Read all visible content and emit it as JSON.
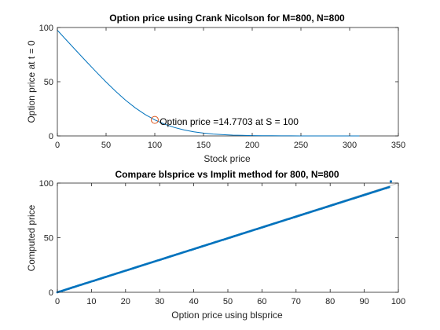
{
  "figure": {
    "background": "#ffffff",
    "axes_color": "#262626",
    "line_color": "#0072BD",
    "marker_color": "#D95319",
    "ref_line_color": "#c0c0c0"
  },
  "chart_data": [
    {
      "type": "line",
      "title": "Option price using Crank Nicolson for M=800, N=800",
      "xlabel": "Stock price",
      "ylabel": "Option price at t = 0",
      "xlim": [
        0,
        350
      ],
      "ylim": [
        0,
        100
      ],
      "xticks": [
        0,
        50,
        100,
        150,
        200,
        250,
        300,
        350
      ],
      "yticks": [
        0,
        50,
        100
      ],
      "grid": false,
      "series": [
        {
          "x": [
            0,
            10,
            20,
            30,
            40,
            50,
            60,
            70,
            80,
            90,
            100,
            110,
            120,
            130,
            140,
            150,
            160,
            170,
            180,
            190,
            200,
            210,
            220,
            230,
            240,
            250,
            260,
            270,
            280,
            290,
            300,
            310
          ],
          "y": [
            97.5,
            87.7,
            78.0,
            68.4,
            58.9,
            49.7,
            41.0,
            33.0,
            25.9,
            19.8,
            14.77,
            10.9,
            7.8,
            5.5,
            3.8,
            2.6,
            1.75,
            1.15,
            0.75,
            0.48,
            0.31,
            0.2,
            0.12,
            0.08,
            0.05,
            0.03,
            0.02,
            0.01,
            0.01,
            0.0,
            0.0,
            0.0
          ]
        }
      ],
      "highlight_point": {
        "x": 100,
        "y": 14.7703
      },
      "annotation": {
        "text": "Option price =14.7703 at S = 100",
        "x": 105,
        "y": 13
      }
    },
    {
      "type": "scatter",
      "title": "Compare blsprice vs Implit method for 800, N=800",
      "xlabel": "Option price using blsprice",
      "ylabel": "Computed price",
      "xlim": [
        0,
        100
      ],
      "ylim": [
        0,
        100
      ],
      "xticks": [
        0,
        10,
        20,
        30,
        40,
        50,
        60,
        70,
        80,
        90,
        100
      ],
      "yticks": [
        0,
        50,
        100
      ],
      "grid": false,
      "reference_line": {
        "from": [
          0,
          0
        ],
        "to": [
          100,
          100
        ]
      },
      "series": [
        {
          "x_range": [
            0,
            97.5
          ],
          "slope": 0.99,
          "outlier": {
            "x": 97.8,
            "y": 101.5
          }
        }
      ]
    }
  ]
}
